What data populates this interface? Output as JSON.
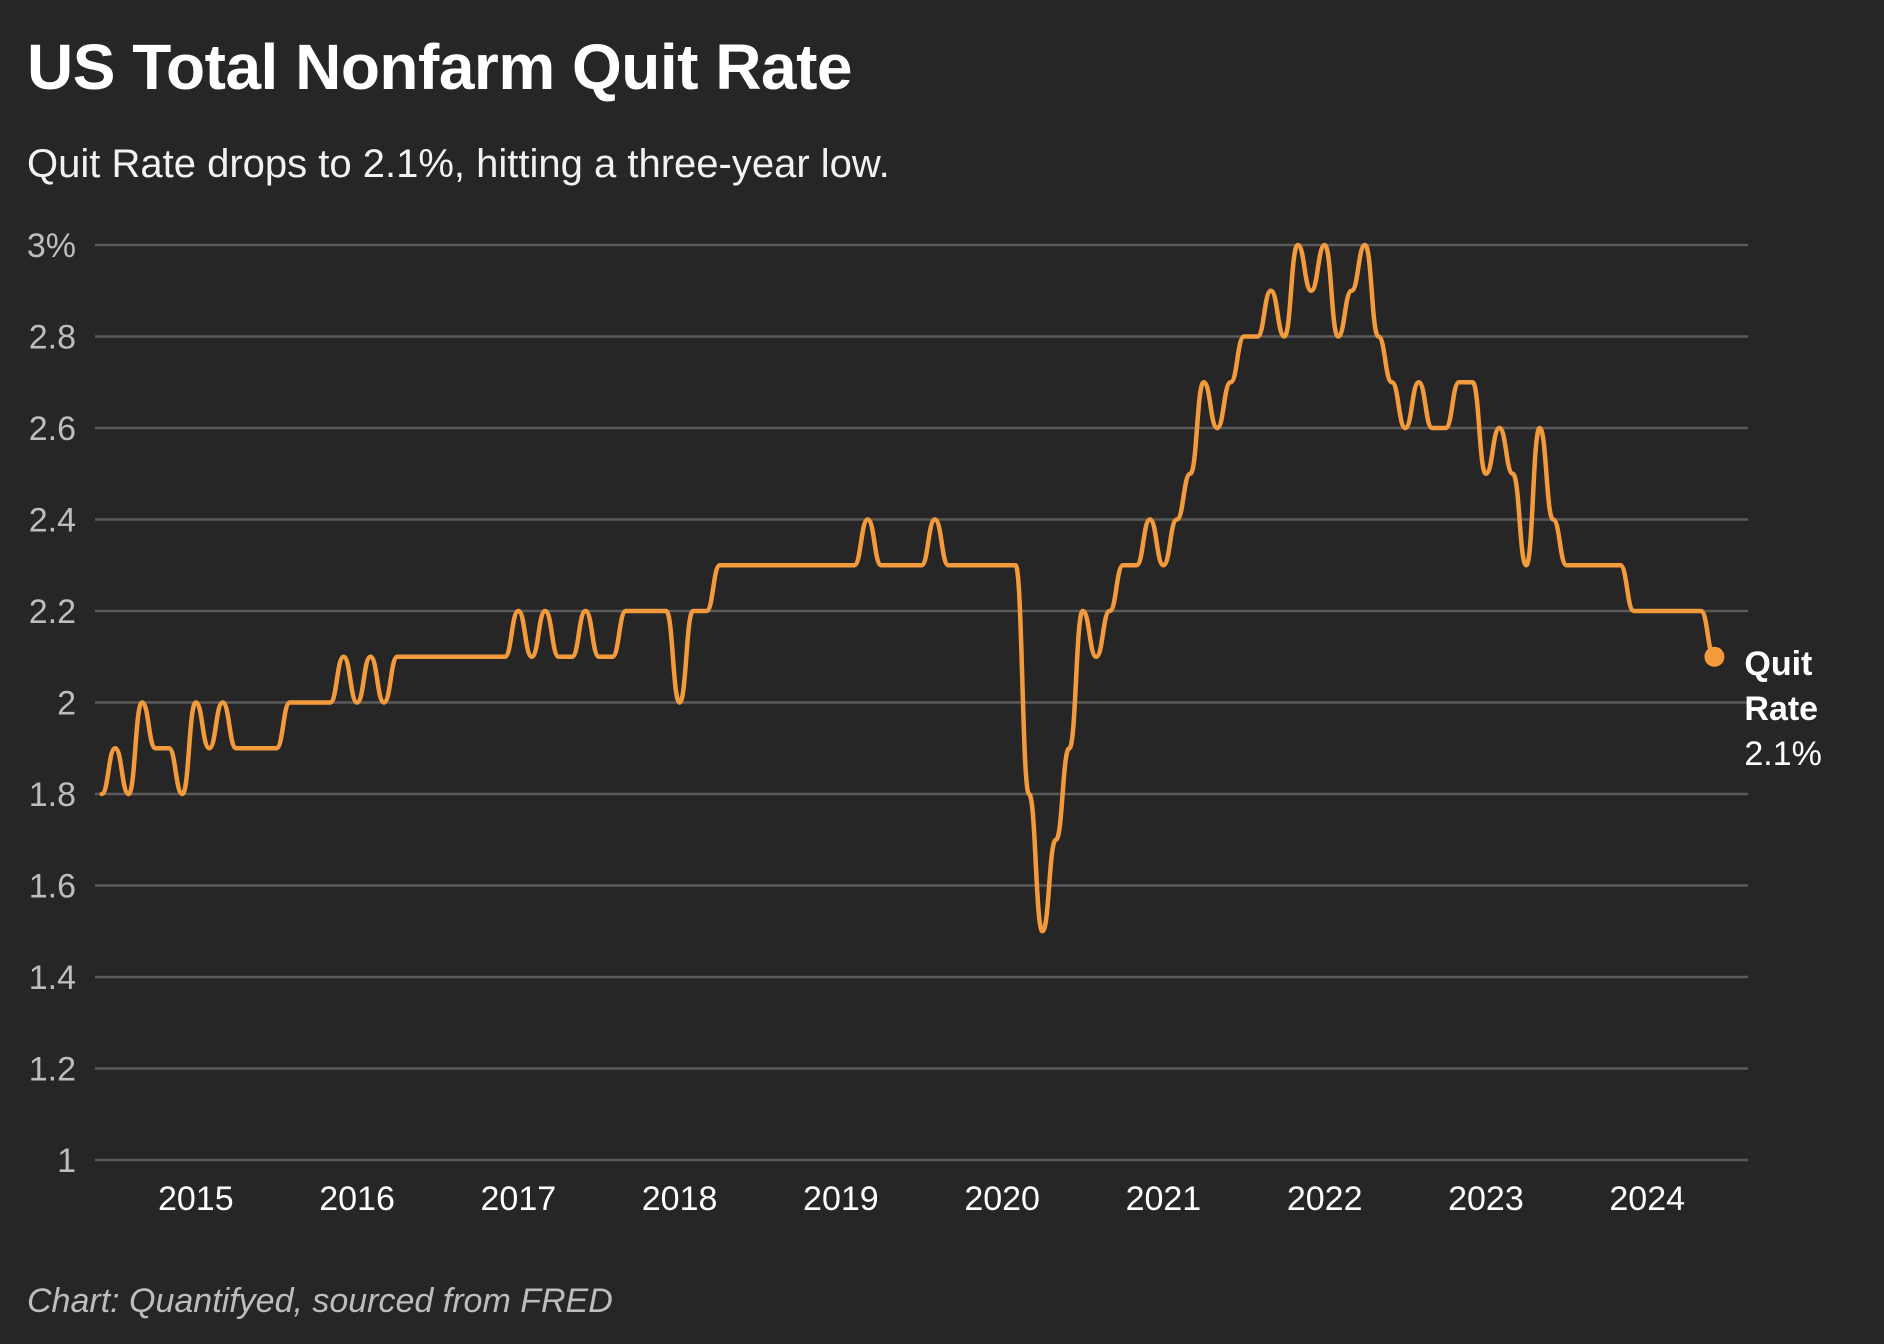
{
  "title": "US Total Nonfarm Quit Rate",
  "subtitle": "Quit Rate drops to 2.1%, hitting a three-year low.",
  "footer": "Chart: Quantifyed, sourced from FRED",
  "colors": {
    "background": "#262626",
    "line": "#F39A3C",
    "grid": "#5a5a5a"
  },
  "chart_data": {
    "type": "line",
    "title": "US Total Nonfarm Quit Rate",
    "xlabel": "",
    "ylabel": "",
    "xlim": [
      2014.375,
      2024.625
    ],
    "ylim": [
      1,
      3
    ],
    "yticks": [
      1,
      1.2,
      1.4,
      1.6,
      1.8,
      2,
      2.2,
      2.4,
      2.6,
      2.8,
      3
    ],
    "ytick_labels": [
      "1",
      "1.2",
      "1.4",
      "1.6",
      "1.8",
      "2",
      "2.2",
      "2.4",
      "2.6",
      "2.8",
      "3%"
    ],
    "xticks": [
      2015,
      2016,
      2017,
      2018,
      2019,
      2020,
      2021,
      2022,
      2023,
      2024
    ],
    "xtick_labels": [
      "2015",
      "2016",
      "2017",
      "2018",
      "2019",
      "2020",
      "2021",
      "2022",
      "2023",
      "2024"
    ],
    "grid": "horizontal",
    "series": [
      {
        "name": "Quit Rate",
        "x": [
          "2014-06",
          "2014-07",
          "2014-08",
          "2014-09",
          "2014-10",
          "2014-11",
          "2014-12",
          "2015-01",
          "2015-02",
          "2015-03",
          "2015-04",
          "2015-05",
          "2015-06",
          "2015-07",
          "2015-08",
          "2015-09",
          "2015-10",
          "2015-11",
          "2015-12",
          "2016-01",
          "2016-02",
          "2016-03",
          "2016-04",
          "2016-05",
          "2016-06",
          "2016-07",
          "2016-08",
          "2016-09",
          "2016-10",
          "2016-11",
          "2016-12",
          "2017-01",
          "2017-02",
          "2017-03",
          "2017-04",
          "2017-05",
          "2017-06",
          "2017-07",
          "2017-08",
          "2017-09",
          "2017-10",
          "2017-11",
          "2017-12",
          "2018-01",
          "2018-02",
          "2018-03",
          "2018-04",
          "2018-05",
          "2018-06",
          "2018-07",
          "2018-08",
          "2018-09",
          "2018-10",
          "2018-11",
          "2018-12",
          "2019-01",
          "2019-02",
          "2019-03",
          "2019-04",
          "2019-05",
          "2019-06",
          "2019-07",
          "2019-08",
          "2019-09",
          "2019-10",
          "2019-11",
          "2019-12",
          "2020-01",
          "2020-02",
          "2020-03",
          "2020-04",
          "2020-05",
          "2020-06",
          "2020-07",
          "2020-08",
          "2020-09",
          "2020-10",
          "2020-11",
          "2020-12",
          "2021-01",
          "2021-02",
          "2021-03",
          "2021-04",
          "2021-05",
          "2021-06",
          "2021-07",
          "2021-08",
          "2021-09",
          "2021-10",
          "2021-11",
          "2021-12",
          "2022-01",
          "2022-02",
          "2022-03",
          "2022-04",
          "2022-05",
          "2022-06",
          "2022-07",
          "2022-08",
          "2022-09",
          "2022-10",
          "2022-11",
          "2022-12",
          "2023-01",
          "2023-02",
          "2023-03",
          "2023-04",
          "2023-05",
          "2023-06",
          "2023-07",
          "2023-08",
          "2023-09",
          "2023-10",
          "2023-11",
          "2023-12",
          "2024-01",
          "2024-02",
          "2024-03",
          "2024-04",
          "2024-05",
          "2024-06"
        ],
        "y": [
          1.8,
          1.9,
          1.8,
          2.0,
          1.9,
          1.9,
          1.8,
          2.0,
          1.9,
          2.0,
          1.9,
          1.9,
          1.9,
          1.9,
          2.0,
          2.0,
          2.0,
          2.0,
          2.1,
          2.0,
          2.1,
          2.0,
          2.1,
          2.1,
          2.1,
          2.1,
          2.1,
          2.1,
          2.1,
          2.1,
          2.1,
          2.2,
          2.1,
          2.2,
          2.1,
          2.1,
          2.2,
          2.1,
          2.1,
          2.2,
          2.2,
          2.2,
          2.2,
          2.0,
          2.2,
          2.2,
          2.3,
          2.3,
          2.3,
          2.3,
          2.3,
          2.3,
          2.3,
          2.3,
          2.3,
          2.3,
          2.3,
          2.4,
          2.3,
          2.3,
          2.3,
          2.3,
          2.4,
          2.3,
          2.3,
          2.3,
          2.3,
          2.3,
          2.3,
          1.8,
          1.5,
          1.7,
          1.9,
          2.2,
          2.1,
          2.2,
          2.3,
          2.3,
          2.4,
          2.3,
          2.4,
          2.5,
          2.7,
          2.6,
          2.7,
          2.8,
          2.8,
          2.9,
          2.8,
          3.0,
          2.9,
          3.0,
          2.8,
          2.9,
          3.0,
          2.8,
          2.7,
          2.6,
          2.7,
          2.6,
          2.6,
          2.7,
          2.7,
          2.5,
          2.6,
          2.5,
          2.3,
          2.6,
          2.4,
          2.3,
          2.3,
          2.3,
          2.3,
          2.3,
          2.2,
          2.2,
          2.2,
          2.2,
          2.2,
          2.2,
          2.1
        ]
      }
    ],
    "end_label": {
      "name_line1": "Quit",
      "name_line2": "Rate",
      "value": "2.1%"
    }
  }
}
